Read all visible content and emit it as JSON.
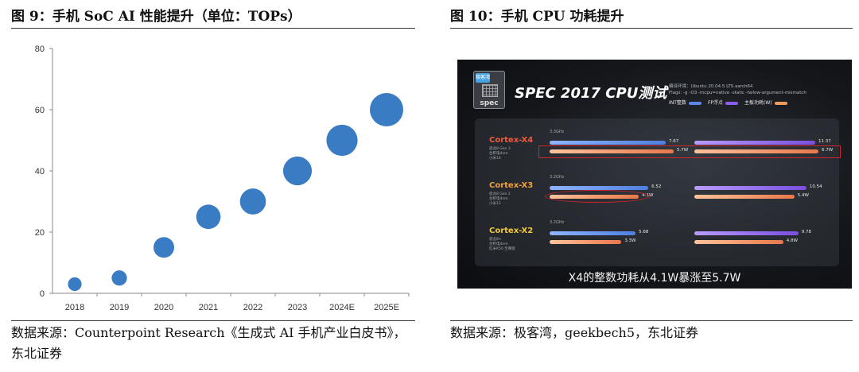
{
  "left": {
    "title": "图 9：手机 SoC AI 性能提升（单位：TOPs）",
    "source": "数据来源：Counterpoint Research《生成式 AI 手机产业白皮书》，东北证券"
  },
  "right": {
    "title": "图 10：手机 CPU 功耗提升",
    "source": "数据来源：极客湾，geekbech5，东北证券",
    "logo_badge": "极客湾",
    "logo_word": "spec",
    "spec_title": "SPEC 2017 CPU测试",
    "meta_line1": "编译环境：Ubuntu 20.04.5 LTS aarch64",
    "meta_line2": "Flags: -g -O3 -mcpu=native -static -fallow-argument-mismatch",
    "legend": [
      {
        "label": "INT整数",
        "color": "#5b86e5"
      },
      {
        "label": "FP浮点",
        "color": "#8a5cf0"
      },
      {
        "label": "主板功耗(W)",
        "color": "#f09a5e"
      }
    ],
    "cores": [
      {
        "name": "Cortex-X4",
        "name_color": "#f05a3c",
        "sub": [
          "骁龙8 Gen 3",
          "台积电4nm",
          "小米14"
        ],
        "ghz": "3.3GHz",
        "int_val": "7.67",
        "fp_val": "11.37",
        "int_power": "5.7W",
        "fp_power": "6.7W"
      },
      {
        "name": "Cortex-X3",
        "name_color": "#f0a23c",
        "sub": [
          "骁龙8 Gen 2",
          "台积电4nm",
          "小米13"
        ],
        "ghz": "3.2GHz",
        "int_val": "6.52",
        "fp_val": "10.54",
        "int_power": "4.1W",
        "fp_power": "5.4W"
      },
      {
        "name": "Cortex-X2",
        "name_color": "#f0c83c",
        "sub": [
          "骁龙8+",
          "台积电4nm",
          "红米K50 至尊版"
        ],
        "ghz": "3.2GHz",
        "int_val": "5.68",
        "fp_val": "9.78",
        "int_power": "3.3W",
        "fp_power": "4.8W"
      }
    ],
    "caption": "X4的整数功耗从4.1W暴涨至5.7W"
  },
  "chart_data": {
    "type": "scatter",
    "title": "",
    "xlabel": "",
    "ylabel": "",
    "categories": [
      "2018",
      "2019",
      "2020",
      "2021",
      "2022",
      "2023",
      "2024E",
      "2025E"
    ],
    "values": [
      3,
      5,
      15,
      25,
      30,
      40,
      50,
      60
    ],
    "ylim": [
      0,
      80
    ],
    "yticks": [
      0,
      20,
      40,
      60,
      80
    ],
    "marker_color": "#3a7cc4",
    "marker_size_encodes_value": true,
    "grid": false,
    "legend": "none"
  }
}
